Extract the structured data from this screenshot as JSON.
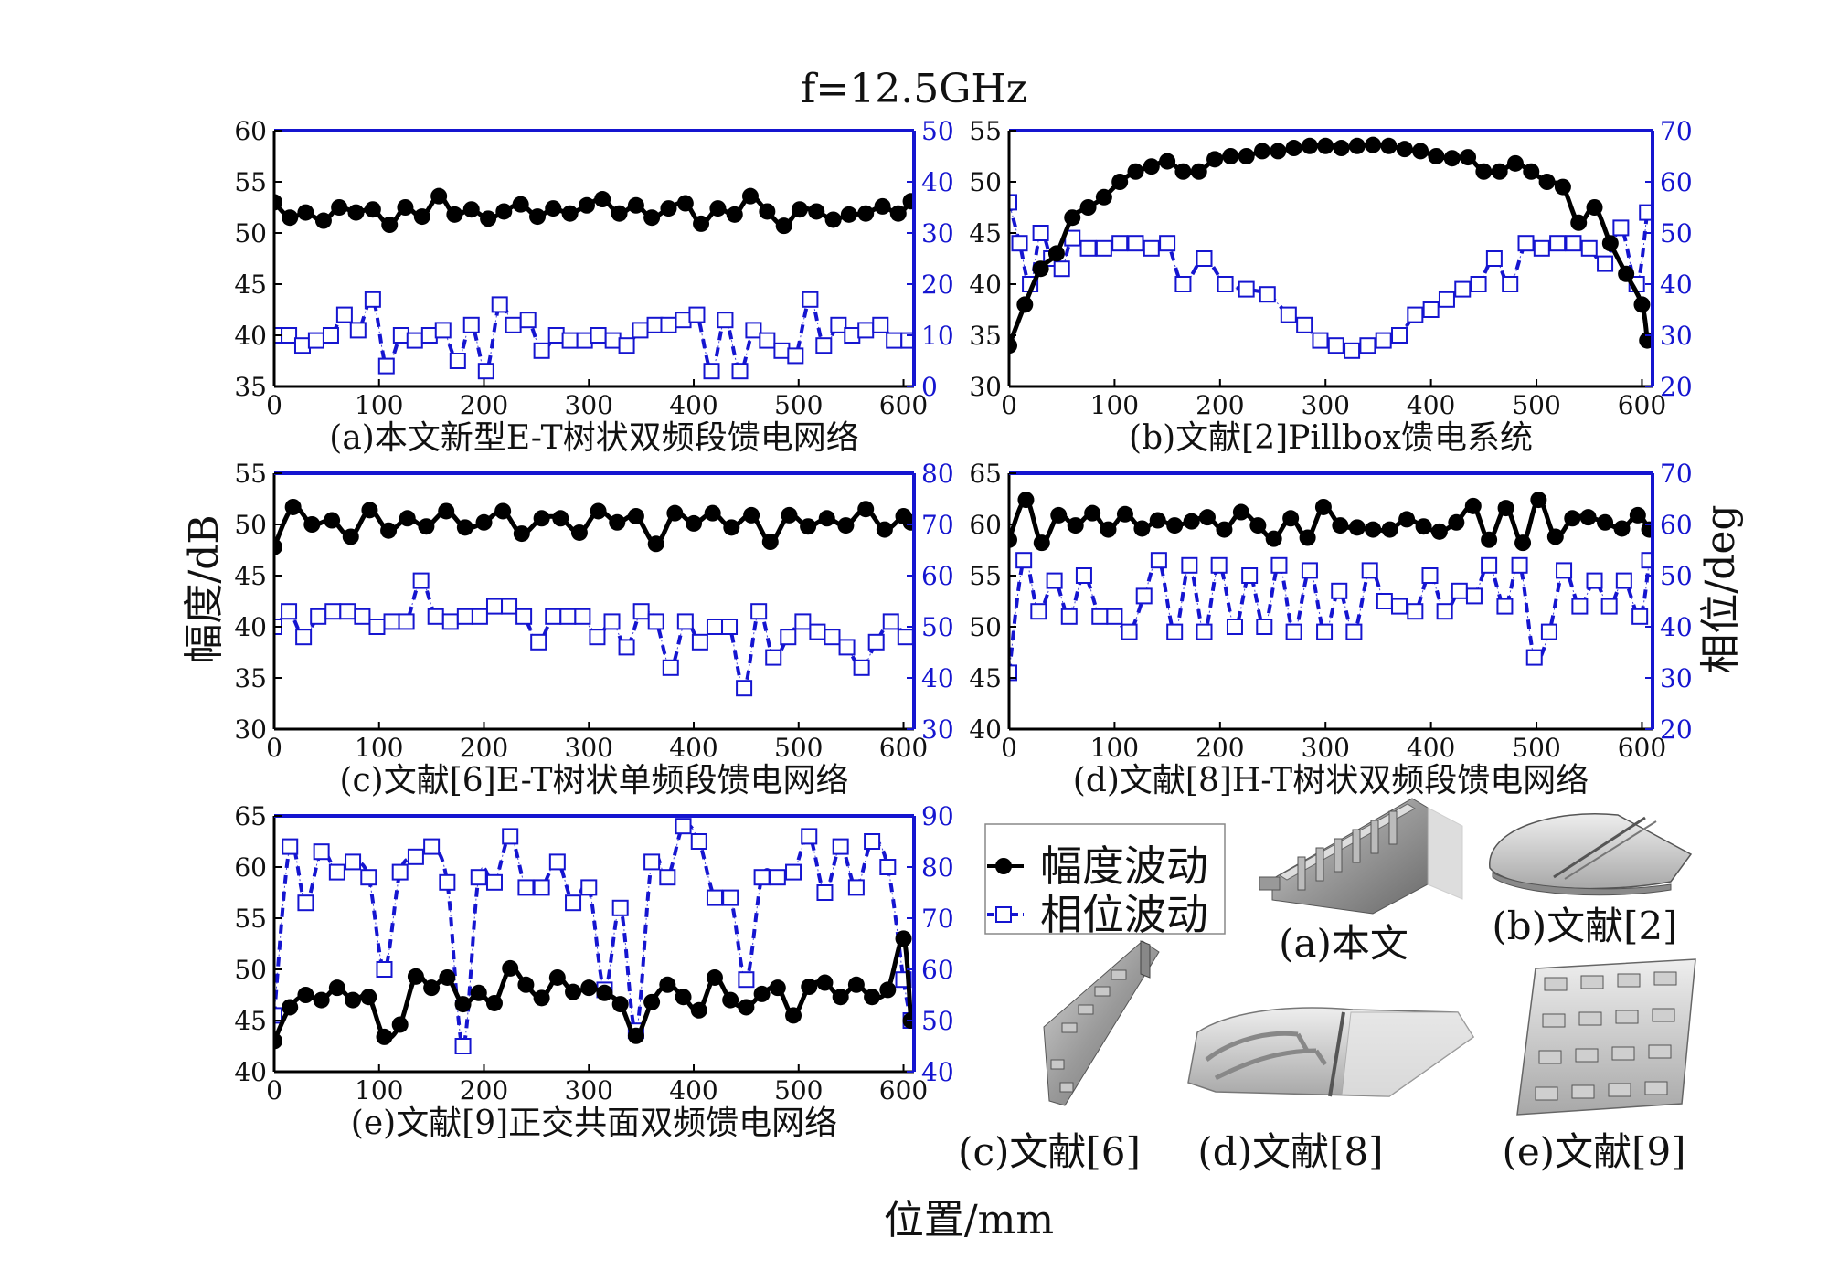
{
  "figure": {
    "title": "f=12.5GHz",
    "xlabel": "位置/mm",
    "ylabel_left": "幅度/dB",
    "ylabel_right": "相位/deg"
  },
  "legend": {
    "amplitude": "幅度波动",
    "phase": "相位波动"
  },
  "colors": {
    "amplitude": "#000000",
    "phase": "#1515d0",
    "axis_right": "#1515d0"
  },
  "thumbnails": [
    {
      "id": "a",
      "label": "(a)本文",
      "icon": "E-T-tree-feed-network-render"
    },
    {
      "id": "b",
      "label": "(b)文献[2]",
      "icon": "pillbox-feed-render"
    },
    {
      "id": "c",
      "label": "(c)文献[6]",
      "icon": "E-T-single-band-render"
    },
    {
      "id": "d",
      "label": "(d)文献[8]",
      "icon": "H-T-tree-render"
    },
    {
      "id": "e",
      "label": "(e)文献[9]",
      "icon": "orthogonal-coplanar-render"
    }
  ],
  "chart_data": [
    {
      "id": "a",
      "type": "line",
      "title": "(a)本文新型E-T树状双频段馈电网络",
      "xlim": [
        0,
        610
      ],
      "xticks": [
        0,
        100,
        200,
        300,
        400,
        500,
        600
      ],
      "ylim_left": [
        35,
        60
      ],
      "yticks_left": [
        35,
        40,
        45,
        50,
        55,
        60
      ],
      "ylim_right": [
        0,
        50
      ],
      "yticks_right": [
        0,
        10,
        20,
        30,
        40,
        50
      ],
      "series": [
        {
          "name": "幅度波动",
          "axis": "left",
          "marker": "filled-circle",
          "x": [
            0,
            15,
            30,
            47,
            62,
            78,
            94,
            110,
            125,
            141,
            157,
            172,
            188,
            204,
            219,
            235,
            251,
            266,
            282,
            298,
            313,
            329,
            345,
            360,
            376,
            392,
            407,
            423,
            439,
            454,
            470,
            486,
            501,
            517,
            533,
            548,
            564,
            580,
            595,
            607
          ],
          "y": [
            53,
            51.5,
            52,
            51.2,
            52.5,
            52,
            52.3,
            50.8,
            52.5,
            51.6,
            53.6,
            51.8,
            52.3,
            51.4,
            52.1,
            52.8,
            51.6,
            52.4,
            51.9,
            52.7,
            53.3,
            51.9,
            52.7,
            51.5,
            52.4,
            52.9,
            50.9,
            52.4,
            51.8,
            53.6,
            52.1,
            50.7,
            52.3,
            52.1,
            51.3,
            51.8,
            51.9,
            52.6,
            51.9,
            53.1
          ]
        },
        {
          "name": "相位波动",
          "axis": "right",
          "marker": "open-square",
          "x": [
            0,
            14,
            27,
            40,
            54,
            67,
            80,
            94,
            107,
            121,
            134,
            148,
            161,
            175,
            188,
            202,
            215,
            228,
            242,
            255,
            269,
            282,
            296,
            309,
            323,
            336,
            349,
            363,
            376,
            390,
            403,
            417,
            430,
            444,
            457,
            470,
            484,
            497,
            511,
            524,
            538,
            551,
            564,
            578,
            591,
            605
          ],
          "y": [
            10,
            10,
            8,
            9,
            10,
            14,
            11,
            17,
            4,
            10,
            9,
            10,
            11,
            5,
            12,
            3,
            16,
            12,
            13,
            7,
            10,
            9,
            9,
            10,
            9,
            8,
            11,
            12,
            12,
            13,
            14,
            3,
            13,
            3,
            11,
            9,
            7,
            6,
            17,
            8,
            12,
            10,
            11,
            12,
            9,
            9
          ]
        }
      ]
    },
    {
      "id": "b",
      "type": "line",
      "title": "(b)文献[2]Pillbox馈电系统",
      "xlim": [
        0,
        610
      ],
      "xticks": [
        0,
        100,
        200,
        300,
        400,
        500,
        600
      ],
      "ylim_left": [
        30,
        55
      ],
      "yticks_left": [
        30,
        35,
        40,
        45,
        50,
        55
      ],
      "ylim_right": [
        20,
        70
      ],
      "yticks_right": [
        20,
        30,
        40,
        50,
        60,
        70
      ],
      "series": [
        {
          "name": "幅度波动",
          "axis": "left",
          "marker": "filled-circle",
          "x": [
            0,
            15,
            30,
            45,
            60,
            75,
            90,
            105,
            120,
            135,
            150,
            165,
            180,
            195,
            210,
            225,
            240,
            255,
            270,
            285,
            300,
            315,
            330,
            345,
            360,
            375,
            390,
            405,
            420,
            435,
            450,
            465,
            480,
            495,
            510,
            525,
            540,
            555,
            570,
            585,
            600,
            605
          ],
          "y": [
            34,
            38,
            41.5,
            43,
            46.5,
            47.5,
            48.5,
            50,
            51,
            51.5,
            52,
            51,
            51,
            52.2,
            52.5,
            52.5,
            53,
            53,
            53.3,
            53.5,
            53.5,
            53.3,
            53.5,
            53.6,
            53.5,
            53.2,
            53,
            52.5,
            52.3,
            52.4,
            51,
            51,
            51.8,
            51,
            50,
            49.5,
            46,
            47.5,
            44,
            41,
            38,
            34.5
          ]
        },
        {
          "name": "相位波动",
          "axis": "right",
          "marker": "open-square",
          "x": [
            0,
            10,
            20,
            30,
            40,
            50,
            60,
            75,
            90,
            105,
            120,
            135,
            150,
            165,
            185,
            205,
            225,
            245,
            265,
            280,
            295,
            310,
            325,
            340,
            355,
            370,
            385,
            400,
            415,
            430,
            445,
            460,
            475,
            490,
            505,
            520,
            535,
            550,
            565,
            580,
            595,
            605
          ],
          "y": [
            56,
            48,
            40,
            50,
            45,
            43,
            49,
            47,
            47,
            48,
            48,
            47,
            48,
            40,
            45,
            40,
            39,
            38,
            34,
            32,
            29,
            28,
            27,
            28,
            29,
            30,
            34,
            35,
            37,
            39,
            40,
            45,
            40,
            48,
            47,
            48,
            48,
            47,
            44,
            51,
            40,
            54
          ]
        }
      ]
    },
    {
      "id": "c",
      "type": "line",
      "title": "(c)文献[6]E-T树状单频段馈电网络",
      "xlim": [
        0,
        610
      ],
      "xticks": [
        0,
        100,
        200,
        300,
        400,
        500,
        600
      ],
      "ylim_left": [
        30,
        55
      ],
      "yticks_left": [
        30,
        35,
        40,
        45,
        50,
        55
      ],
      "ylim_right": [
        30,
        80
      ],
      "yticks_right": [
        30,
        40,
        50,
        60,
        70,
        80
      ],
      "series": [
        {
          "name": "幅度波动",
          "axis": "left",
          "marker": "filled-circle",
          "x": [
            0,
            18,
            36,
            55,
            73,
            91,
            109,
            127,
            145,
            164,
            182,
            200,
            218,
            236,
            255,
            273,
            291,
            309,
            327,
            345,
            364,
            382,
            400,
            418,
            436,
            455,
            473,
            491,
            509,
            527,
            545,
            564,
            582,
            600,
            607
          ],
          "y": [
            47.8,
            51.7,
            50,
            50.4,
            48.8,
            51.4,
            49.4,
            50.6,
            49.8,
            51.3,
            49.7,
            50.2,
            51.3,
            49.1,
            50.6,
            50.6,
            49.2,
            51.3,
            50.2,
            50.8,
            48.1,
            51.1,
            50.1,
            51.1,
            49.7,
            50.9,
            48.3,
            50.9,
            49.8,
            50.6,
            49.9,
            51.5,
            49.5,
            50.8,
            50.2
          ]
        },
        {
          "name": "相位波动",
          "axis": "right",
          "marker": "open-square",
          "x": [
            0,
            14,
            28,
            42,
            56,
            70,
            84,
            98,
            112,
            126,
            140,
            154,
            168,
            182,
            196,
            210,
            224,
            238,
            252,
            266,
            280,
            294,
            308,
            322,
            336,
            350,
            364,
            378,
            392,
            406,
            420,
            434,
            448,
            462,
            476,
            490,
            504,
            518,
            532,
            546,
            560,
            574,
            588,
            602
          ],
          "y": [
            50,
            53,
            48,
            52,
            53,
            53,
            52,
            50,
            51,
            51,
            59,
            52,
            51,
            52,
            52,
            54,
            54,
            52,
            47,
            52,
            52,
            52,
            48,
            51,
            46,
            53,
            51,
            42,
            51,
            47,
            50,
            50,
            38,
            53,
            44,
            48,
            51,
            49,
            48,
            46,
            42,
            47,
            51,
            48
          ]
        }
      ]
    },
    {
      "id": "d",
      "type": "line",
      "title": "(d)文献[8]H-T树状双频段馈电网络",
      "xlim": [
        0,
        610
      ],
      "xticks": [
        0,
        100,
        200,
        300,
        400,
        500,
        600
      ],
      "ylim_left": [
        40,
        65
      ],
      "yticks_left": [
        40,
        45,
        50,
        55,
        60,
        65
      ],
      "ylim_right": [
        20,
        70
      ],
      "yticks_right": [
        20,
        30,
        40,
        50,
        60,
        70
      ],
      "series": [
        {
          "name": "幅度波动",
          "axis": "left",
          "marker": "filled-circle",
          "x": [
            0,
            16,
            31,
            47,
            63,
            79,
            94,
            110,
            126,
            141,
            157,
            173,
            188,
            204,
            220,
            236,
            251,
            267,
            283,
            298,
            314,
            330,
            345,
            361,
            377,
            393,
            408,
            424,
            440,
            455,
            471,
            487,
            502,
            518,
            534,
            549,
            565,
            581,
            596,
            607
          ],
          "y": [
            58.5,
            62.4,
            58.2,
            60.9,
            59.9,
            61.1,
            59.5,
            61,
            59.6,
            60.4,
            59.9,
            60.3,
            60.7,
            59.5,
            61.2,
            59.9,
            58.6,
            60.6,
            58.7,
            61.7,
            59.9,
            59.7,
            59.5,
            59.5,
            60.5,
            59.8,
            59.3,
            60.2,
            61.8,
            58.5,
            61.6,
            58.2,
            62.4,
            58.8,
            60.6,
            60.7,
            60.2,
            59.6,
            60.9,
            59.5
          ]
        },
        {
          "name": "相位波动",
          "axis": "right",
          "marker": "open-square",
          "x": [
            0,
            14,
            28,
            43,
            57,
            71,
            86,
            100,
            114,
            128,
            142,
            157,
            171,
            185,
            199,
            214,
            228,
            242,
            256,
            270,
            285,
            299,
            313,
            327,
            342,
            356,
            370,
            385,
            399,
            413,
            427,
            441,
            455,
            470,
            484,
            498,
            512,
            526,
            541,
            555,
            569,
            583,
            598,
            607
          ],
          "y": [
            31,
            53,
            43,
            49,
            42,
            50,
            42,
            42,
            39,
            46,
            53,
            39,
            52,
            39,
            52,
            40,
            50,
            40,
            52,
            39,
            51,
            39,
            47,
            39,
            51,
            45,
            44,
            43,
            50,
            43,
            47,
            46,
            52,
            44,
            52,
            34,
            39,
            51,
            44,
            49,
            44,
            49,
            42,
            53
          ]
        }
      ]
    },
    {
      "id": "e",
      "type": "line",
      "title": "(e)文献[9]正交共面双频馈电网络",
      "xlim": [
        0,
        610
      ],
      "xticks": [
        0,
        100,
        200,
        300,
        400,
        500,
        600
      ],
      "ylim_left": [
        40,
        65
      ],
      "yticks_left": [
        40,
        45,
        50,
        55,
        60,
        65
      ],
      "ylim_right": [
        40,
        90
      ],
      "yticks_right": [
        40,
        50,
        60,
        70,
        80,
        90
      ],
      "series": [
        {
          "name": "幅度波动",
          "axis": "left",
          "marker": "filled-circle",
          "x": [
            0,
            15,
            30,
            45,
            60,
            75,
            90,
            105,
            120,
            135,
            150,
            165,
            180,
            195,
            210,
            225,
            240,
            255,
            270,
            285,
            300,
            315,
            330,
            345,
            360,
            375,
            390,
            405,
            420,
            435,
            450,
            465,
            480,
            495,
            510,
            525,
            540,
            555,
            570,
            585,
            600,
            607
          ],
          "y": [
            43,
            46.3,
            47.5,
            47,
            48.2,
            47,
            47.3,
            43.4,
            44.6,
            49.3,
            48.2,
            49.2,
            46.6,
            47.7,
            46.7,
            50.1,
            48.5,
            47.2,
            49.2,
            47.8,
            48.2,
            47.7,
            46.6,
            43.5,
            46.8,
            48.5,
            47.3,
            46,
            49.2,
            47,
            46.3,
            47.6,
            48.2,
            45.5,
            48.3,
            48.7,
            47.3,
            48.5,
            47.3,
            48,
            53,
            45
          ]
        },
        {
          "name": "相位波动",
          "axis": "right",
          "marker": "open-square",
          "x": [
            0,
            15,
            30,
            45,
            60,
            75,
            90,
            105,
            120,
            135,
            150,
            165,
            180,
            195,
            210,
            225,
            240,
            255,
            270,
            285,
            300,
            315,
            330,
            345,
            360,
            375,
            390,
            405,
            420,
            435,
            450,
            465,
            480,
            495,
            510,
            525,
            540,
            555,
            570,
            585,
            600,
            607
          ],
          "y": [
            51,
            84,
            73,
            83,
            79,
            81,
            78,
            60,
            79,
            82,
            84,
            77,
            45,
            78,
            77,
            86,
            76,
            76,
            81,
            73,
            76,
            56,
            72,
            48,
            81,
            78,
            88,
            85,
            74,
            74,
            58,
            78,
            78,
            79,
            86,
            75,
            84,
            76,
            85,
            80,
            58,
            50
          ]
        }
      ]
    }
  ]
}
